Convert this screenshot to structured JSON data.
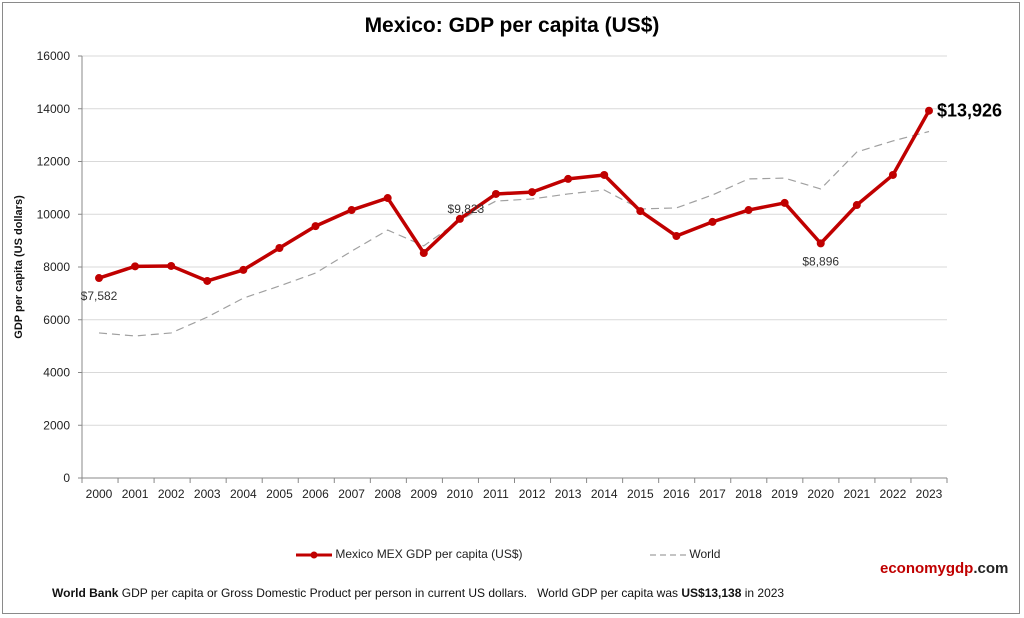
{
  "chart_data": {
    "type": "line",
    "title": "Mexico: GDP per capita (US$)",
    "ylabel": "GDP per capita (US dollars)",
    "xlabel": "",
    "ylim": [
      0,
      16000
    ],
    "yticks": [
      0,
      2000,
      4000,
      6000,
      8000,
      10000,
      12000,
      14000,
      16000
    ],
    "grid": true,
    "legend": "bottom",
    "categories": [
      "2000",
      "2001",
      "2002",
      "2003",
      "2004",
      "2005",
      "2006",
      "2007",
      "2008",
      "2009",
      "2010",
      "2011",
      "2012",
      "2013",
      "2014",
      "2015",
      "2016",
      "2017",
      "2018",
      "2019",
      "2020",
      "2021",
      "2022",
      "2023"
    ],
    "series": [
      {
        "name": "Mexico MEX GDP per capita (US$)",
        "color": "#c00000",
        "style": "solid-markers",
        "values": [
          7582,
          8025,
          8040,
          7470,
          7890,
          8720,
          9550,
          10160,
          10615,
          8530,
          9823,
          10770,
          10840,
          11340,
          11490,
          10120,
          9175,
          9710,
          10160,
          10430,
          8896,
          10350,
          11490,
          13926
        ]
      },
      {
        "name": "World",
        "color": "#a0a0a0",
        "style": "dashed",
        "values": [
          5500,
          5385,
          5500,
          6100,
          6820,
          7280,
          7770,
          8600,
          9400,
          8800,
          9780,
          10500,
          10580,
          10770,
          10920,
          10200,
          10240,
          10730,
          11340,
          11370,
          10960,
          12360,
          12780,
          13138
        ]
      }
    ],
    "annotations": [
      {
        "label": "$7,582",
        "year": "2000"
      },
      {
        "label": "$9,823",
        "year": "2010"
      },
      {
        "label": "$8,896",
        "year": "2020"
      },
      {
        "label": "$13,926",
        "year": "2023"
      }
    ]
  },
  "brand": {
    "part1": "economygdp",
    "part2": ".com"
  },
  "footer": {
    "bold1": "World Bank",
    "text1": " GDP per capita or Gross Domestic Product per person in current US dollars.   World GDP per capita was ",
    "bold2": "US$13,138",
    "text2": " in 2023"
  }
}
